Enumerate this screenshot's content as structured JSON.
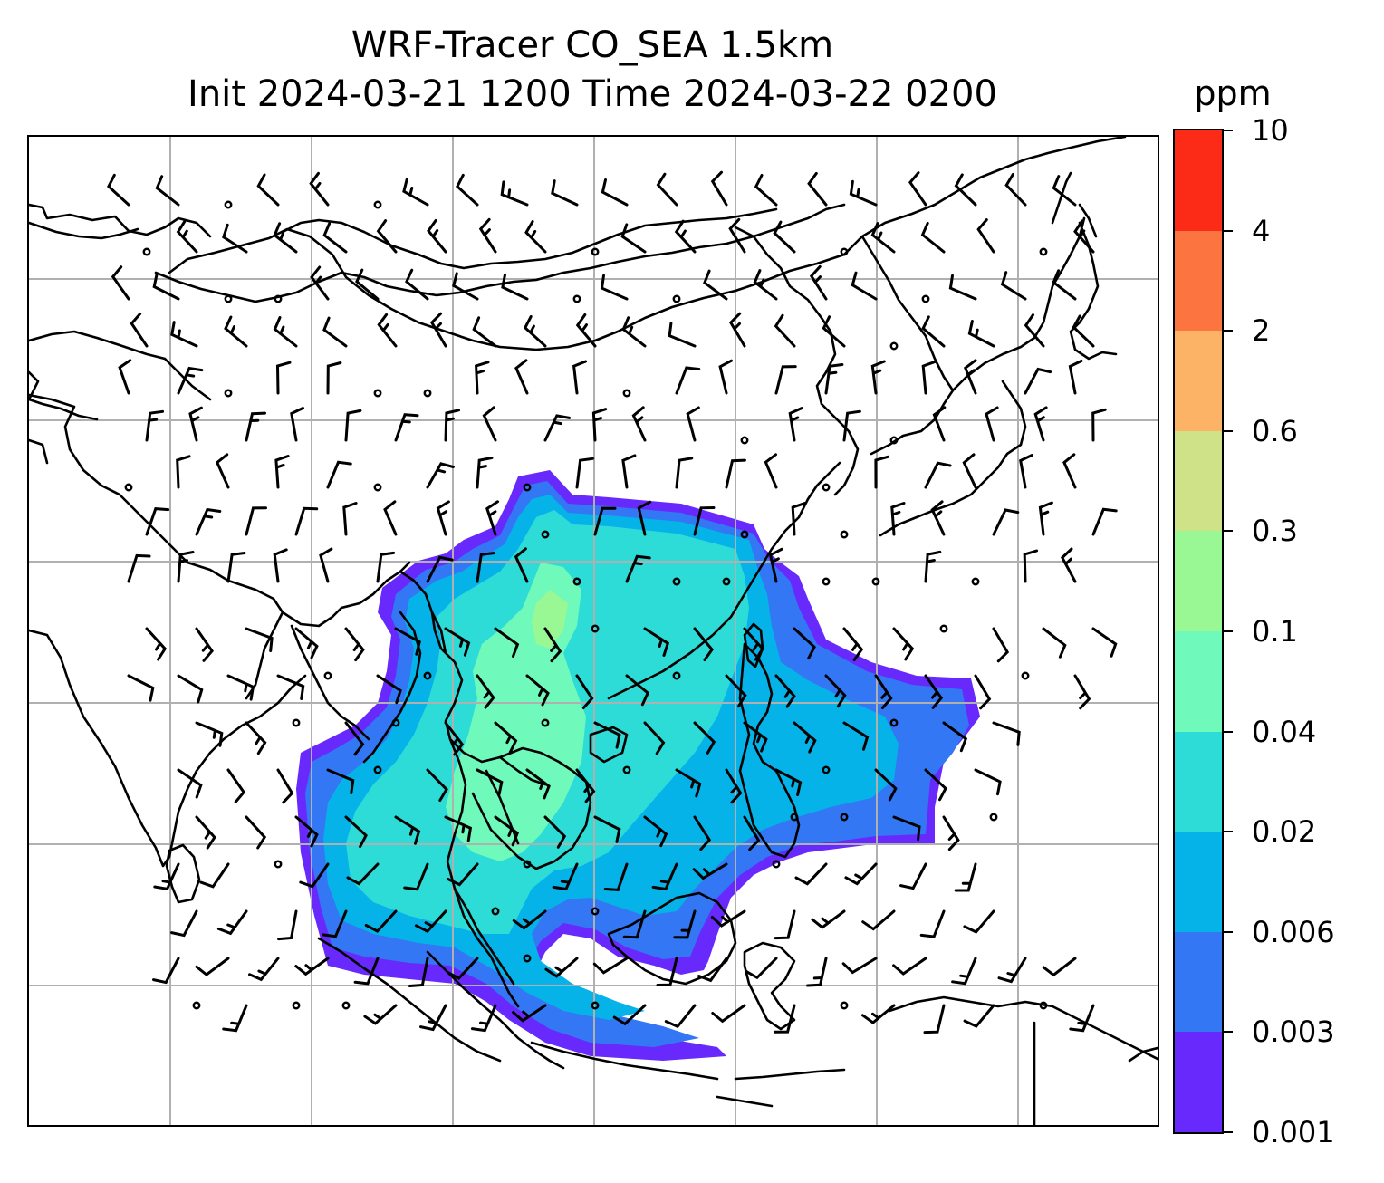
{
  "title_line1": "WRF-Tracer CO_SEA 1.5km",
  "title_line2": "Init 2024-03-21 1200 Time 2024-03-22 0200",
  "colorbar": {
    "unit": "ppm",
    "levels": [
      "0.001",
      "0.003",
      "0.006",
      "0.02",
      "0.04",
      "0.1",
      "0.3",
      "0.6",
      "2",
      "4",
      "10"
    ],
    "colors": [
      "#6729fc",
      "#3377f4",
      "#05b3e8",
      "#2ddcd7",
      "#6ffabc",
      "#99f894",
      "#cfe288",
      "#fcb366",
      "#fc7541",
      "#fc2b18"
    ]
  },
  "map": {
    "gridlines": true,
    "gridline_color": "#b0b0b0",
    "coastline_color": "#000000",
    "field": "CO tracer concentration (shaded) with wind barbs"
  }
}
